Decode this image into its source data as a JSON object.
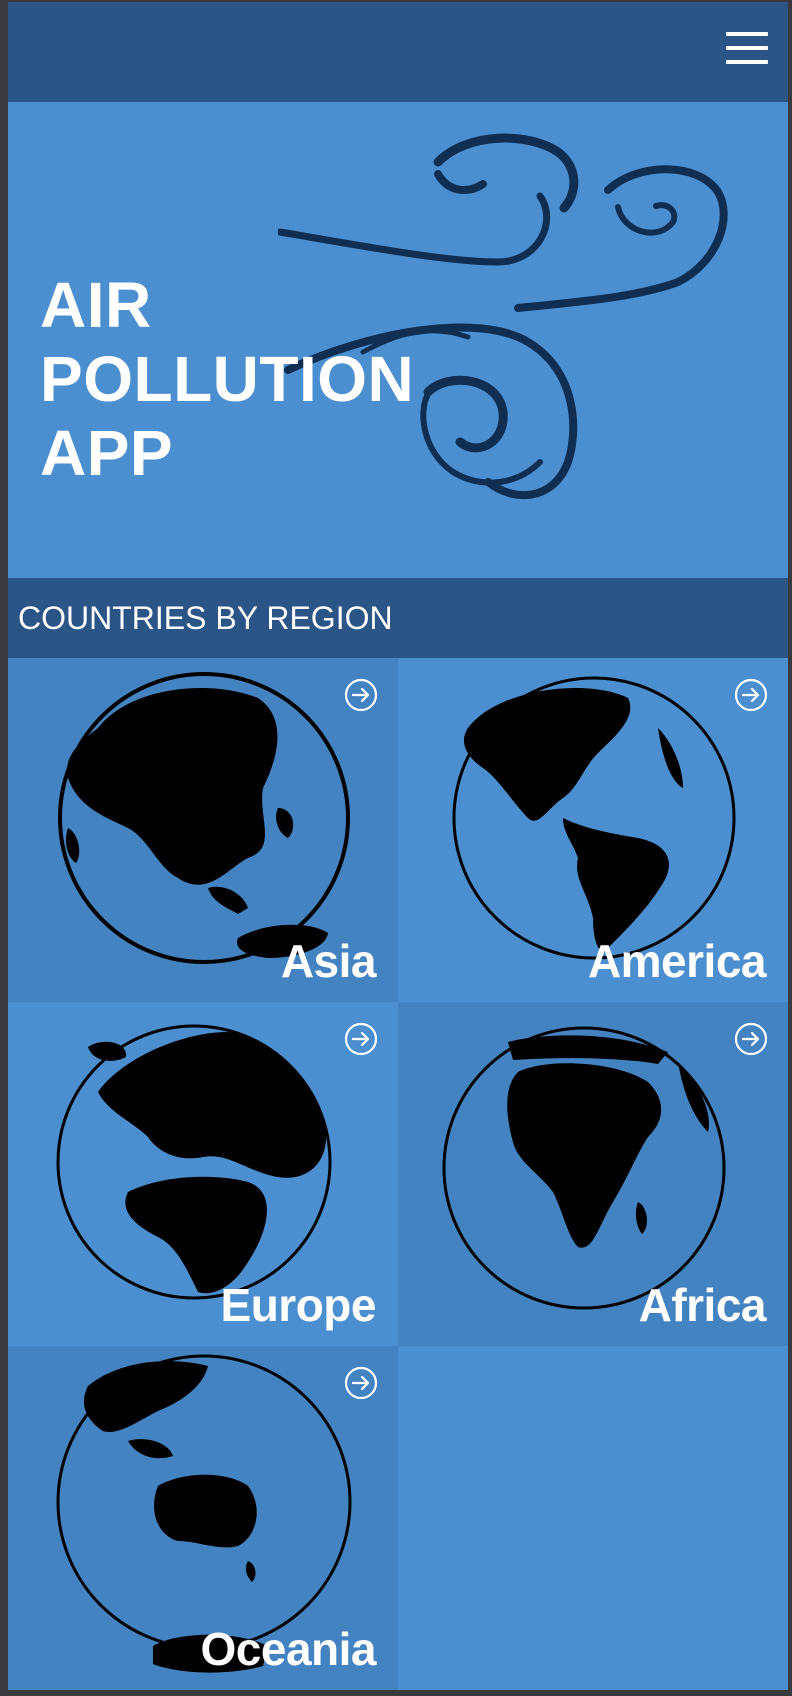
{
  "header": {
    "menu_icon": "hamburger-menu-icon"
  },
  "hero": {
    "title_line1": "AIR POLLUTION",
    "title_line2": "APP",
    "graphic_icon": "wind-swirls-icon"
  },
  "section": {
    "title": "COUNTRIES BY REGION"
  },
  "regions": [
    {
      "name": "Asia",
      "icon": "globe-asia-icon"
    },
    {
      "name": "America",
      "icon": "globe-america-icon"
    },
    {
      "name": "Europe",
      "icon": "globe-europe-icon"
    },
    {
      "name": "Africa",
      "icon": "globe-africa-icon"
    },
    {
      "name": "Oceania",
      "icon": "globe-oceania-icon"
    }
  ],
  "colors": {
    "header": "#2b5586",
    "hero": "#4b8fd0",
    "tile_dark": "#4383c2",
    "tile_light": "#4b8fd0",
    "swirl": "#0f2e52"
  }
}
